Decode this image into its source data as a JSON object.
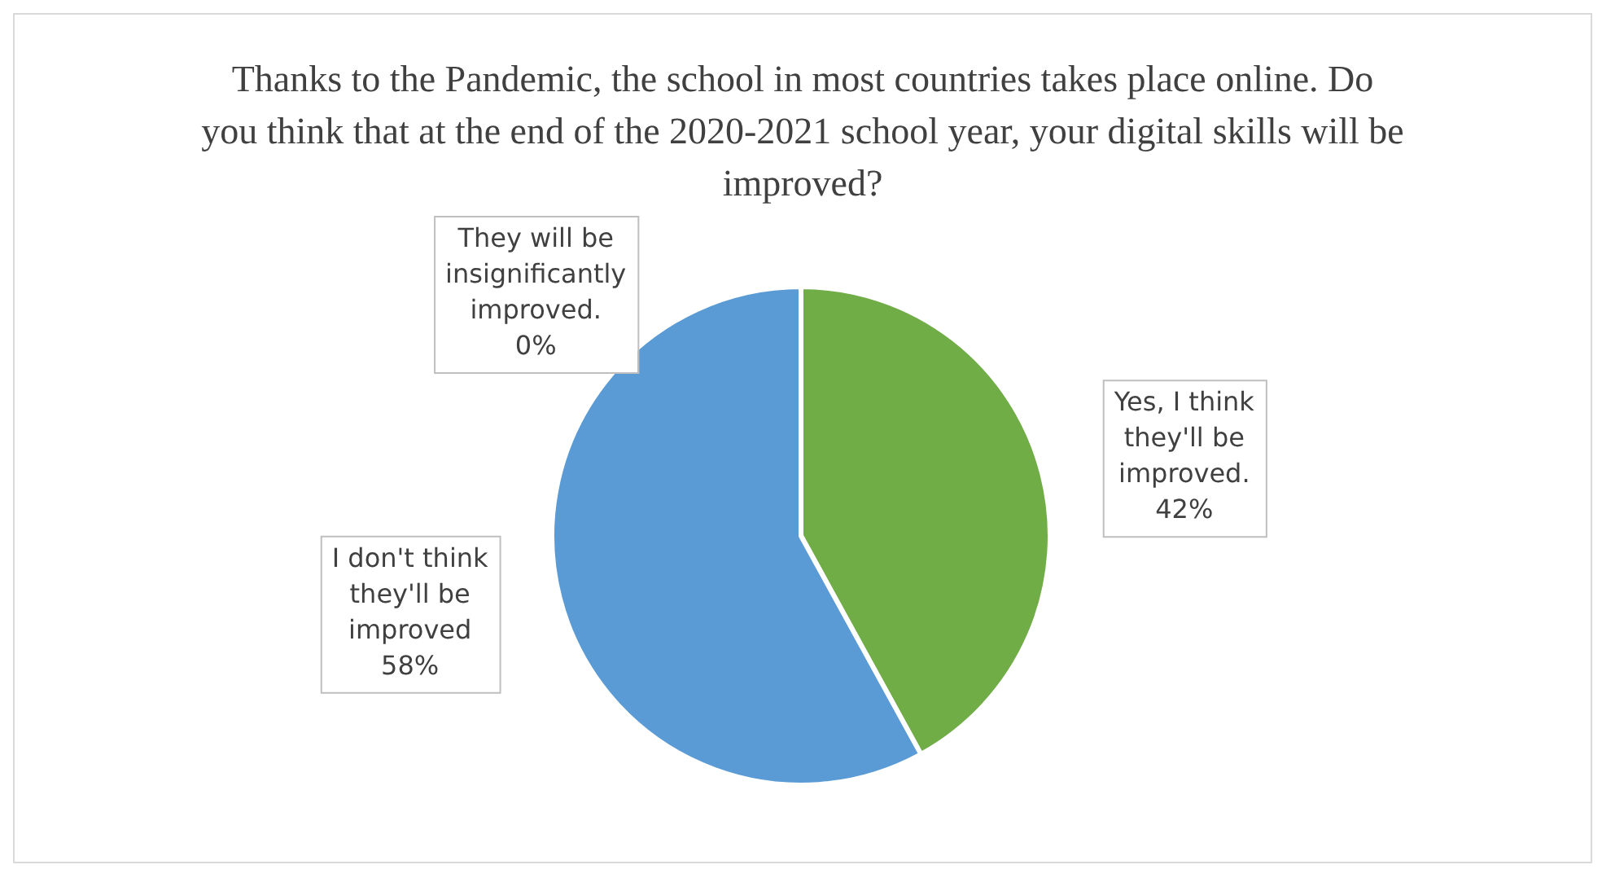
{
  "chart_data": {
    "type": "pie",
    "title": "Thanks to the Pandemic, the school in most countries takes place online.  Do you think that at the end of the 2020-2021 school year, your digital  skills will be improved?",
    "categories": [
      "Yes, I think they'll be improved.",
      "I don't think they'll be improved",
      "They will be insignificantly improved."
    ],
    "values": [
      42,
      58,
      0
    ],
    "colors": [
      "#70ad47",
      "#5b9bd5",
      "#a5a5a5"
    ],
    "value_labels": [
      "42%",
      "58%",
      "0%"
    ],
    "legend": false
  }
}
